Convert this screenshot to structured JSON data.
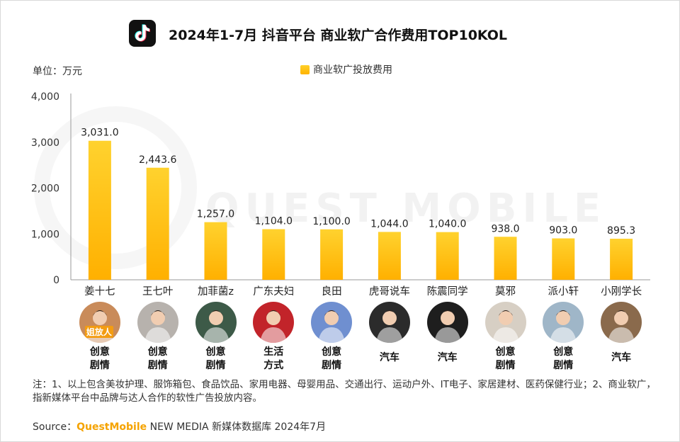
{
  "title": "2024年1-7月 抖音平台 商业软广合作费用TOP10KOL",
  "unit_label": "单位：万元",
  "legend_label": "商业软广投放费用",
  "watermark": "QUEST MOBILE",
  "chart_data": {
    "type": "bar",
    "title": "2024年1-7月 抖音平台 商业软广合作费用TOP10KOL",
    "ylabel": "单位：万元",
    "ylim": [
      0,
      4000
    ],
    "yticks": [
      "0",
      "1,000",
      "2,000",
      "3,000",
      "4,000"
    ],
    "ytick_values": [
      0,
      1000,
      2000,
      3000,
      4000
    ],
    "categories": [
      "姜十七",
      "王七叶",
      "加菲菌z",
      "广东夫妇",
      "良田",
      "虎哥说车",
      "陈震同学",
      "莫邪",
      "派小轩",
      "小刚学长"
    ],
    "series": [
      {
        "name": "商业软广投放费用",
        "values": [
          3031.0,
          2443.6,
          1257.0,
          1104.0,
          1100.0,
          1044.0,
          1040.0,
          938.0,
          903.0,
          895.3
        ],
        "labels": [
          "3,031.0",
          "2,443.6",
          "1,257.0",
          "1,104.0",
          "1,100.0",
          "1,044.0",
          "1,040.0",
          "938.0",
          "903.0",
          "895.3"
        ]
      }
    ],
    "bar_color": "#ffb800",
    "grid": false,
    "legend": "top-center"
  },
  "kols": [
    {
      "name": "姜十七",
      "category": "创意\n剧情",
      "avatar_color": "#c98b5a",
      "badge": "姐放人"
    },
    {
      "name": "王七叶",
      "category": "创意\n剧情",
      "avatar_color": "#b7b2ad",
      "badge": ""
    },
    {
      "name": "加菲菌z",
      "category": "创意\n剧情",
      "avatar_color": "#3d5a48",
      "badge": ""
    },
    {
      "name": "广东夫妇",
      "category": "生活\n方式",
      "avatar_color": "#c2242a",
      "badge": ""
    },
    {
      "name": "良田",
      "category": "创意\n剧情",
      "avatar_color": "#6f8fd0",
      "badge": ""
    },
    {
      "name": "虎哥说车",
      "category": "汽车",
      "avatar_color": "#2b2b2b",
      "badge": ""
    },
    {
      "name": "陈震同学",
      "category": "汽车",
      "avatar_color": "#1e1e1e",
      "badge": ""
    },
    {
      "name": "莫邪",
      "category": "创意\n剧情",
      "avatar_color": "#d7cfc4",
      "badge": ""
    },
    {
      "name": "派小轩",
      "category": "创意\n剧情",
      "avatar_color": "#9fb6c8",
      "badge": ""
    },
    {
      "name": "小刚学长",
      "category": "汽车",
      "avatar_color": "#8a6a4c",
      "badge": ""
    }
  ],
  "note": "注：1、以上包含美妆护理、服饰箱包、食品饮品、家用电器、母婴用品、交通出行、运动户外、IT电子、家居建材、医药保健行业；2、商业软广，指新媒体平台中品牌与达人合作的软性广告投放内容。",
  "source": {
    "prefix": "Source：",
    "brand": "QuestMobile",
    "rest": " NEW MEDIA 新媒体数据库 2024年7月"
  }
}
